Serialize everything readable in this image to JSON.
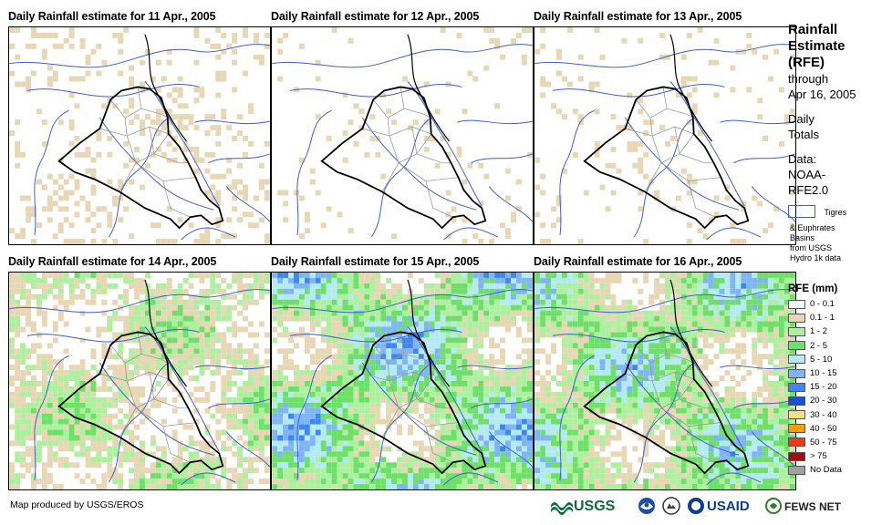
{
  "panels": [
    {
      "title": "Daily Rainfall estimate for 11 Apr., 2005",
      "intensity": 0.12
    },
    {
      "title": "Daily Rainfall estimate for 12 Apr., 2005",
      "intensity": 0.04
    },
    {
      "title": "Daily Rainfall estimate for 13 Apr., 2005",
      "intensity": 0.06
    },
    {
      "title": "Daily Rainfall estimate for 14 Apr., 2005",
      "intensity": 0.45
    },
    {
      "title": "Daily Rainfall estimate for 15 Apr., 2005",
      "intensity": 0.85
    },
    {
      "title": "Daily Rainfall estimate for 16 Apr., 2005",
      "intensity": 0.75
    }
  ],
  "sidebar": {
    "title_lines": [
      "Rainfall",
      "Estimate",
      "(RFE)"
    ],
    "through_lines": [
      "through",
      "Apr 16, 2005"
    ],
    "totals_lines": [
      "Daily",
      "Totals"
    ],
    "data_lines": [
      "Data:",
      "NOAA-",
      "RFE2.0"
    ],
    "basin_label_1": "Tigres",
    "basin_label_rest": [
      "& Euphrates",
      "Basins",
      "from USGS",
      "Hydro 1k data"
    ]
  },
  "legend": {
    "title": "RFE (mm)",
    "items": [
      {
        "label": "0 - 0.1",
        "color": "#ffffff"
      },
      {
        "label": "0.1 - 1",
        "color": "#e8d7b4"
      },
      {
        "label": "1 - 2",
        "color": "#aef0a0"
      },
      {
        "label": "2 - 5",
        "color": "#6ee06a"
      },
      {
        "label": "5 - 10",
        "color": "#b4eaf2"
      },
      {
        "label": "10 - 15",
        "color": "#7fb5f5"
      },
      {
        "label": "15 - 20",
        "color": "#3f86ee"
      },
      {
        "label": "20 - 30",
        "color": "#1b4fd6"
      },
      {
        "label": "30 - 40",
        "color": "#f5e08a"
      },
      {
        "label": "40 - 50",
        "color": "#f5a000"
      },
      {
        "label": "50 - 75",
        "color": "#ee3a12"
      },
      {
        "label": "> 75",
        "color": "#a01010"
      },
      {
        "label": "No Data",
        "color": "#a0a0a0"
      }
    ]
  },
  "footer": {
    "credit": "Map produced by USGS/EROS",
    "logos": [
      "USGS",
      "NOAA",
      "DOI",
      "USAID",
      "FEWS NET"
    ]
  }
}
